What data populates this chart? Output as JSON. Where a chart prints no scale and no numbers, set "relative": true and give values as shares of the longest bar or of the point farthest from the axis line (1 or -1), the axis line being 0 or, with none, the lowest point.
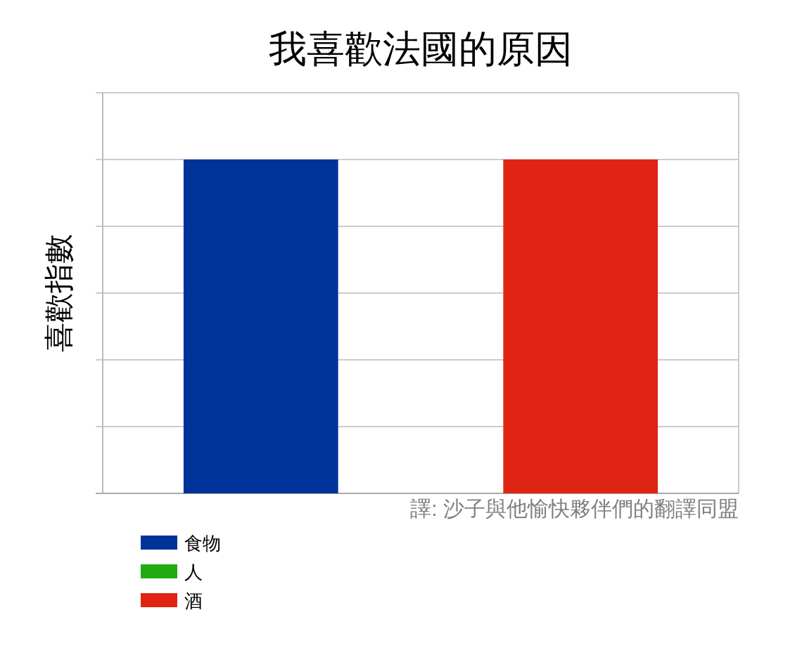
{
  "chart_data": {
    "type": "bar",
    "title": "我喜歡法國的原因",
    "ylabel": "喜歡指數",
    "categories": [
      null
    ],
    "series": [
      {
        "name": "食物",
        "color": "#00339a",
        "values": [
          1
        ]
      },
      {
        "name": "人",
        "color": "#22aa11",
        "values": [
          0
        ]
      },
      {
        "name": "酒",
        "color": "#e02414",
        "values": [
          1
        ]
      }
    ],
    "relative": true,
    "grid": "y",
    "legend": "bottom left",
    "annotations": [
      "譯: 沙子與他愉快夥伴們的翻譯同盟"
    ]
  }
}
